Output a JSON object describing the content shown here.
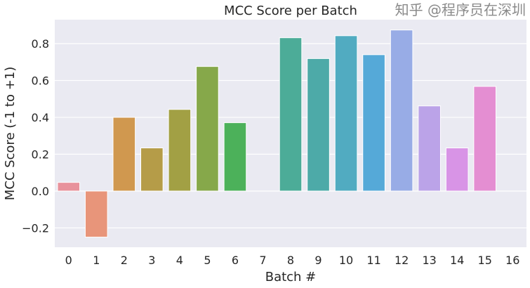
{
  "chart_data": {
    "type": "bar",
    "title": "MCC Score per Batch",
    "xlabel": "Batch #",
    "ylabel": "MCC Score (-1 to +1)",
    "categories": [
      "0",
      "1",
      "2",
      "3",
      "4",
      "5",
      "6",
      "7",
      "8",
      "9",
      "10",
      "11",
      "12",
      "13",
      "14",
      "15",
      "16"
    ],
    "values": [
      0.047,
      -0.25,
      0.4,
      0.234,
      0.443,
      0.676,
      0.371,
      0.0,
      0.832,
      0.719,
      0.843,
      0.74,
      0.874,
      0.462,
      0.234,
      0.568,
      0.0
    ],
    "colors": [
      "#e8929c",
      "#e8957a",
      "#d0984f",
      "#b59c48",
      "#a2a044",
      "#86a84a",
      "#4cb15a",
      "#4cb08a",
      "#4cac98",
      "#4daaa8",
      "#51abc1",
      "#55a9d8",
      "#98ace6",
      "#bba3e8",
      "#d894e6",
      "#e48ed2",
      "#e890ae"
    ],
    "ylim": [
      -0.305,
      0.93
    ],
    "yticks": [
      -0.2,
      0.0,
      0.2,
      0.4,
      0.6,
      0.8
    ],
    "ytick_labels": [
      "−0.2",
      "0.0",
      "0.2",
      "0.4",
      "0.6",
      "0.8"
    ],
    "grid": true,
    "background": "#eaeaf2"
  },
  "watermark": "知乎 @程序员在深圳"
}
